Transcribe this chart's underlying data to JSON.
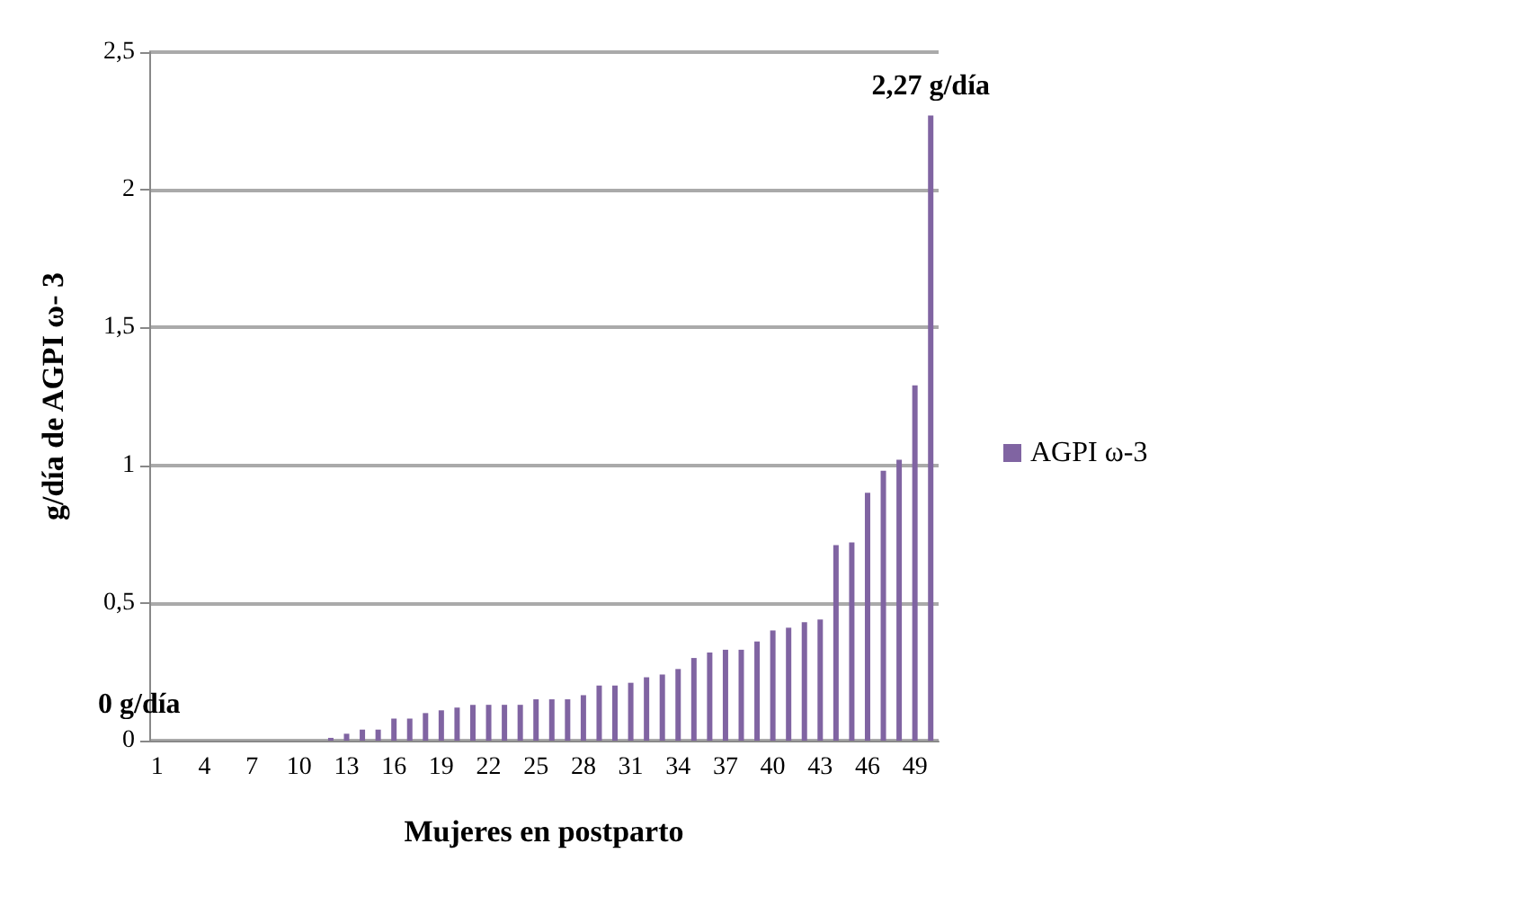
{
  "chart_data": {
    "type": "bar",
    "xlabel": "Mujeres en postparto",
    "ylabel": "g/día de AGPI ω- 3",
    "categories": [
      "1",
      null,
      null,
      "4",
      null,
      null,
      "7",
      null,
      null,
      "10",
      null,
      null,
      "13",
      null,
      null,
      "16",
      null,
      null,
      "19",
      null,
      null,
      "22",
      null,
      null,
      "25",
      null,
      null,
      "28",
      null,
      null,
      "31",
      null,
      null,
      "34",
      null,
      null,
      "37",
      null,
      null,
      "40",
      null,
      null,
      "43",
      null,
      null,
      "46",
      null,
      null,
      "49",
      null
    ],
    "series": [
      {
        "name": "AGPI ω-3",
        "color": "#8064a2",
        "values": [
          0,
          0,
          0,
          0,
          0,
          0,
          0,
          0,
          0,
          0,
          0,
          0.01,
          0.025,
          0.04,
          0.04,
          0.08,
          0.08,
          0.1,
          0.11,
          0.12,
          0.13,
          0.13,
          0.13,
          0.13,
          0.15,
          0.15,
          0.15,
          0.165,
          0.2,
          0.2,
          0.21,
          0.23,
          0.24,
          0.26,
          0.3,
          0.32,
          0.33,
          0.33,
          0.36,
          0.4,
          0.41,
          0.43,
          0.44,
          0.71,
          0.72,
          0.9,
          0.98,
          1.02,
          1.29,
          2.27
        ]
      }
    ],
    "ylim": [
      0,
      2.5
    ],
    "yticks": [
      {
        "value": 0,
        "label": "0"
      },
      {
        "value": 0.5,
        "label": "0,5"
      },
      {
        "value": 1,
        "label": "1"
      },
      {
        "value": 1.5,
        "label": "1,5"
      },
      {
        "value": 2,
        "label": "2"
      },
      {
        "value": 2.5,
        "label": "2,5"
      }
    ],
    "grid": "y",
    "legend": "right",
    "annotations": [
      {
        "text": "2,27 g/día",
        "y": 2.27
      },
      {
        "text": "0 g/día",
        "x": "1",
        "y": 0
      }
    ]
  }
}
